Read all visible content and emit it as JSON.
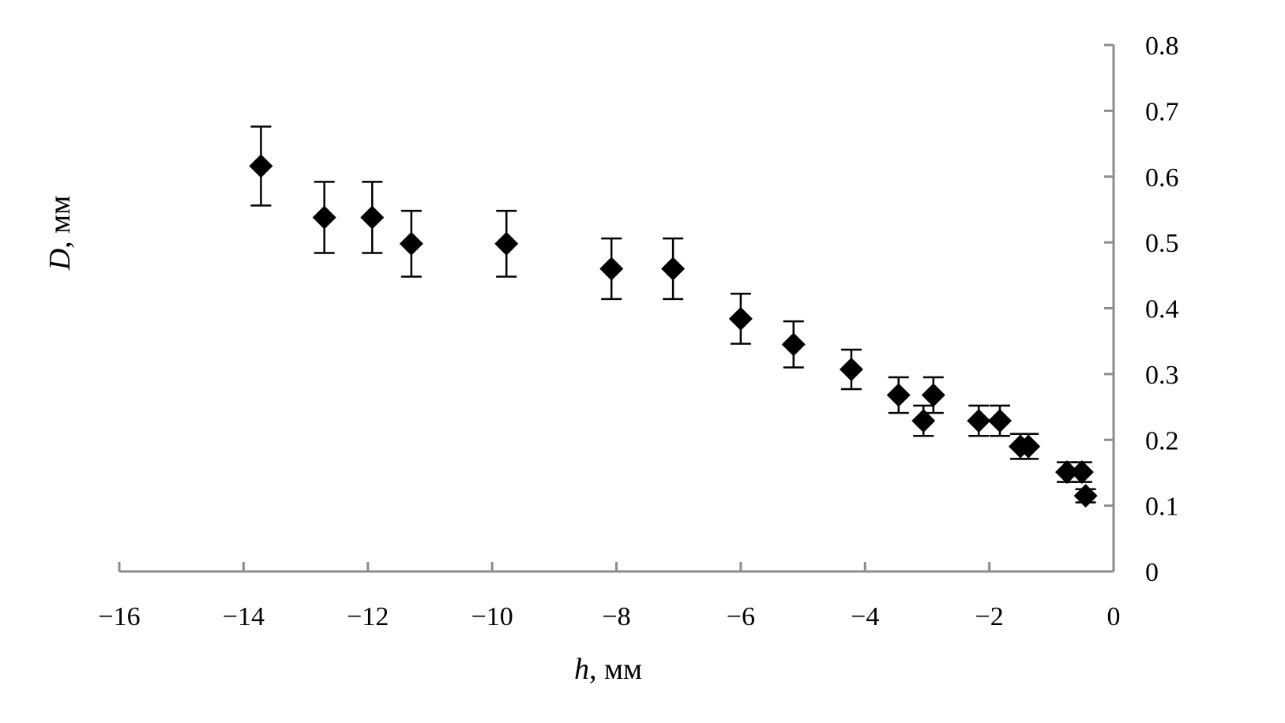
{
  "chart_data": {
    "type": "scatter",
    "title": "",
    "xlabel": "h",
    "xlabel_unit": ", мм",
    "ylabel": "D",
    "ylabel_unit": ", мм",
    "xlim": [
      -16,
      0
    ],
    "ylim": [
      0,
      0.8
    ],
    "x_ticks": [
      -16,
      -14,
      -12,
      -10,
      -8,
      -6,
      -4,
      -2,
      0
    ],
    "x_tick_labels": [
      "−16",
      "−14",
      "−12",
      "−10",
      "−8",
      "−6",
      "−4",
      "−2",
      "0"
    ],
    "y_ticks": [
      0,
      0.1,
      0.2,
      0.3,
      0.4,
      0.5,
      0.6,
      0.7,
      0.8
    ],
    "y_tick_labels": [
      "0",
      "0.1",
      "0.2",
      "0.3",
      "0.4",
      "0.5",
      "0.6",
      "0.7",
      "0.8"
    ],
    "y_axis_side": "right",
    "grid": false,
    "legend": "none",
    "marker": "diamond",
    "marker_color": "#000000",
    "axis_color": "#8c8c8c",
    "points": [
      {
        "x": -13.72,
        "y": 0.616,
        "err": 0.06
      },
      {
        "x": -12.7,
        "y": 0.538,
        "err": 0.054
      },
      {
        "x": -11.93,
        "y": 0.538,
        "err": 0.054
      },
      {
        "x": -11.3,
        "y": 0.498,
        "err": 0.05
      },
      {
        "x": -9.77,
        "y": 0.498,
        "err": 0.05
      },
      {
        "x": -8.08,
        "y": 0.46,
        "err": 0.046
      },
      {
        "x": -7.09,
        "y": 0.46,
        "err": 0.046
      },
      {
        "x": -6.0,
        "y": 0.384,
        "err": 0.038
      },
      {
        "x": -5.15,
        "y": 0.345,
        "err": 0.035
      },
      {
        "x": -4.22,
        "y": 0.307,
        "err": 0.03
      },
      {
        "x": -3.46,
        "y": 0.268,
        "err": 0.027
      },
      {
        "x": -3.06,
        "y": 0.229,
        "err": 0.023
      },
      {
        "x": -2.9,
        "y": 0.268,
        "err": 0.027
      },
      {
        "x": -2.17,
        "y": 0.229,
        "err": 0.023
      },
      {
        "x": -1.83,
        "y": 0.229,
        "err": 0.023
      },
      {
        "x": -1.5,
        "y": 0.19,
        "err": 0.019
      },
      {
        "x": -1.37,
        "y": 0.19,
        "err": 0.019
      },
      {
        "x": -0.75,
        "y": 0.151,
        "err": 0.015
      },
      {
        "x": -0.51,
        "y": 0.151,
        "err": 0.015
      },
      {
        "x": -0.45,
        "y": 0.115,
        "err": 0.01
      }
    ]
  }
}
